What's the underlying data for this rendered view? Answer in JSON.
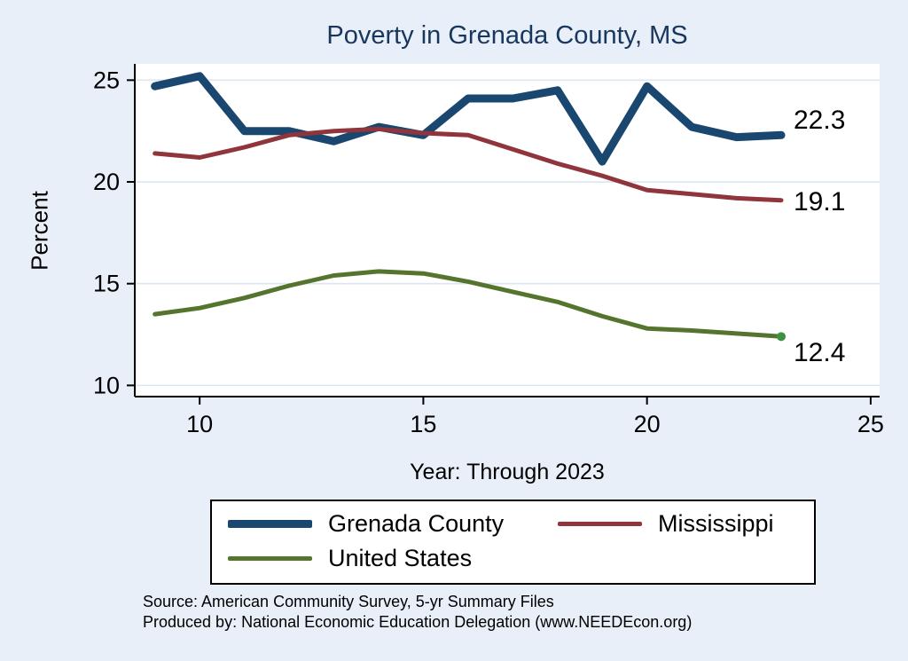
{
  "chart_data": {
    "type": "line",
    "title": "Poverty in Grenada County, MS",
    "xlabel": "Year: Through 2023",
    "ylabel": "Percent",
    "xlim": [
      8.55,
      25.2
    ],
    "ylim": [
      9.45,
      25.8
    ],
    "xticks": [
      10,
      15,
      20,
      25
    ],
    "yticks": [
      10,
      15,
      20,
      25
    ],
    "grid": true,
    "legend_position": "bottom",
    "x": [
      9,
      10,
      11,
      12,
      13,
      14,
      15,
      16,
      17,
      18,
      19,
      20,
      21,
      22,
      23
    ],
    "series": [
      {
        "name": "Grenada County",
        "color": "#1a476f",
        "line_width": 9,
        "end_label": "22.3",
        "label_offset": -17,
        "end_marker": false,
        "values": [
          24.7,
          25.2,
          22.5,
          22.5,
          22.0,
          22.7,
          22.3,
          24.1,
          24.1,
          24.5,
          21.0,
          24.7,
          22.7,
          22.2,
          22.3
        ]
      },
      {
        "name": "Mississippi",
        "color": "#90353b",
        "line_width": 5,
        "end_label": "19.1",
        "label_offset": 2,
        "end_marker": false,
        "values": [
          21.4,
          21.2,
          21.7,
          22.3,
          22.5,
          22.6,
          22.4,
          22.3,
          21.6,
          20.9,
          20.3,
          19.6,
          19.4,
          19.2,
          19.1
        ]
      },
      {
        "name": "United States",
        "color": "#55752f",
        "line_width": 5,
        "end_label": "12.4",
        "label_offset": 18,
        "end_marker": true,
        "end_marker_color": "#3d9140",
        "values": [
          13.5,
          13.8,
          14.3,
          14.9,
          15.4,
          15.6,
          15.5,
          15.1,
          14.6,
          14.1,
          13.4,
          12.8,
          12.7,
          12.55,
          12.4
        ]
      }
    ]
  },
  "footer": {
    "source": "Source: American Community Survey, 5-yr Summary Files",
    "produced_by": "Produced by: National Economic Education Delegation (www.NEEDEcon.org)"
  },
  "colors": {
    "background": "#e9eff8",
    "plot_background": "#ffffff",
    "grid": "#dce6f2",
    "axis": "#000000",
    "title": "#17375e"
  }
}
